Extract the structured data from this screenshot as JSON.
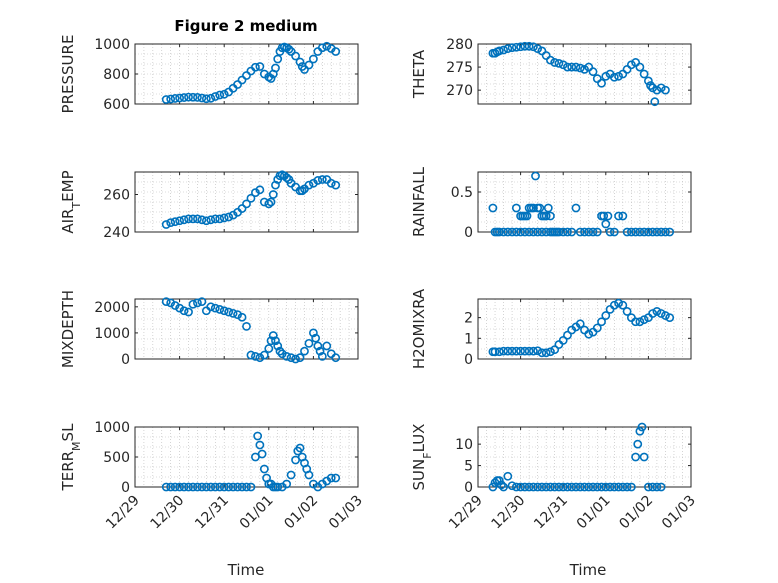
{
  "title": "Figure 2 medium",
  "marker_color": "#0072bd",
  "x_tick_labels": [
    "12/29",
    "12/30",
    "12/31",
    "01/01",
    "01/02",
    "01/03"
  ],
  "chart_data": [
    {
      "type": "scatter",
      "ylabel": "PRESSURE",
      "ylim": [
        600,
        1000
      ],
      "yticks": [
        600,
        800,
        1000
      ],
      "xlim": [
        0,
        5
      ],
      "grid": "on",
      "title": "Figure 2 medium",
      "x": [
        0.7,
        0.8,
        0.9,
        1.0,
        1.1,
        1.2,
        1.3,
        1.4,
        1.5,
        1.6,
        1.7,
        1.8,
        1.9,
        2.0,
        2.1,
        2.2,
        2.3,
        2.4,
        2.5,
        2.6,
        2.7,
        2.8,
        2.9,
        3.0,
        3.05,
        3.1,
        3.15,
        3.2,
        3.25,
        3.3,
        3.35,
        3.4,
        3.45,
        3.5,
        3.6,
        3.7,
        3.75,
        3.8,
        3.9,
        4.0,
        4.1,
        4.2,
        4.3,
        4.4,
        4.5
      ],
      "y": [
        630,
        633,
        637,
        640,
        643,
        646,
        645,
        644,
        640,
        635,
        638,
        650,
        660,
        665,
        680,
        705,
        730,
        760,
        790,
        820,
        845,
        850,
        800,
        780,
        770,
        800,
        840,
        900,
        950,
        975,
        980,
        975,
        965,
        950,
        920,
        880,
        850,
        830,
        860,
        900,
        950,
        975,
        985,
        970,
        950
      ]
    },
    {
      "type": "scatter",
      "ylabel": "THETA",
      "ylim": [
        267,
        280
      ],
      "yticks": [
        270,
        275,
        280
      ],
      "xlim": [
        0,
        5
      ],
      "grid": "on",
      "x": [
        0.35,
        0.4,
        0.45,
        0.5,
        0.6,
        0.7,
        0.8,
        0.9,
        1.0,
        1.1,
        1.2,
        1.3,
        1.4,
        1.5,
        1.6,
        1.7,
        1.8,
        1.9,
        2.0,
        2.1,
        2.2,
        2.3,
        2.4,
        2.5,
        2.6,
        2.7,
        2.8,
        2.9,
        3.0,
        3.1,
        3.2,
        3.3,
        3.4,
        3.5,
        3.6,
        3.7,
        3.8,
        3.9,
        4.0,
        4.05,
        4.1,
        4.15,
        4.2,
        4.3,
        4.4
      ],
      "y": [
        278,
        278,
        278.3,
        278.5,
        278.7,
        279,
        279.2,
        279.3,
        279.4,
        279.5,
        279.5,
        279.4,
        279,
        278.5,
        277.5,
        276.5,
        276,
        275.8,
        275.5,
        275,
        275,
        275,
        274.8,
        274.5,
        275,
        274,
        272.5,
        271.5,
        273,
        273.5,
        272.8,
        273,
        273.5,
        274.5,
        275.5,
        276,
        275,
        273.5,
        272,
        271,
        270.5,
        267.5,
        270,
        270.5,
        270
      ]
    },
    {
      "type": "scatter",
      "ylabel": "AIR_TEMP",
      "ylim": [
        240,
        272
      ],
      "yticks": [
        240,
        260
      ],
      "xlim": [
        0,
        5
      ],
      "grid": "on",
      "x": [
        0.7,
        0.8,
        0.9,
        1.0,
        1.1,
        1.2,
        1.3,
        1.4,
        1.5,
        1.6,
        1.7,
        1.8,
        1.9,
        2.0,
        2.1,
        2.2,
        2.3,
        2.4,
        2.5,
        2.6,
        2.7,
        2.8,
        2.9,
        3.0,
        3.05,
        3.1,
        3.15,
        3.2,
        3.25,
        3.3,
        3.35,
        3.4,
        3.45,
        3.5,
        3.6,
        3.7,
        3.75,
        3.8,
        3.9,
        4.0,
        4.1,
        4.2,
        4.3,
        4.4,
        4.5
      ],
      "y": [
        244,
        245,
        245.5,
        246,
        246.5,
        247,
        247,
        247,
        246.5,
        246,
        246.5,
        247,
        247,
        247.5,
        248,
        249,
        250.5,
        252.5,
        255,
        258,
        261,
        262.5,
        256,
        255,
        256,
        260,
        265,
        268,
        270,
        270.5,
        270,
        269,
        268,
        266,
        264,
        262,
        262,
        263,
        265,
        266,
        267.5,
        268,
        268,
        266,
        265
      ]
    },
    {
      "type": "scatter",
      "ylabel": "RAINFALL",
      "ylim": [
        0,
        0.75
      ],
      "yticks": [
        0,
        0.5
      ],
      "xlim": [
        0,
        5
      ],
      "grid": "on",
      "x": [
        0.35,
        0.4,
        0.45,
        0.5,
        0.6,
        0.7,
        0.8,
        0.9,
        1.0,
        1.05,
        1.1,
        1.15,
        1.2,
        1.25,
        1.3,
        1.35,
        1.4,
        1.45,
        1.5,
        1.55,
        1.6,
        1.65,
        1.7,
        1.75,
        1.8,
        1.85,
        1.9,
        2.0,
        2.1,
        2.2,
        2.3,
        2.4,
        2.5,
        2.6,
        2.7,
        2.8,
        2.9,
        2.95,
        3.0,
        3.05,
        3.1,
        3.2,
        3.3,
        3.4,
        3.5,
        3.6,
        3.7,
        3.8,
        3.9,
        4.0,
        4.1,
        4.2,
        4.3,
        4.4,
        4.5,
        0.9,
        1.0,
        1.1,
        1.2,
        1.3,
        1.4,
        1.5,
        1.6,
        1.7
      ],
      "y": [
        0.3,
        0,
        0,
        0,
        0,
        0,
        0,
        0.3,
        0.2,
        0.2,
        0.2,
        0.2,
        0.3,
        0.3,
        0.3,
        0.7,
        0.3,
        0.3,
        0.2,
        0.2,
        0.2,
        0.3,
        0.2,
        0,
        0,
        0,
        0,
        0,
        0,
        0,
        0.3,
        0,
        0,
        0,
        0,
        0,
        0.2,
        0.2,
        0.1,
        0.2,
        0,
        0,
        0.2,
        0.2,
        0,
        0,
        0,
        0,
        0,
        0,
        0,
        0,
        0,
        0,
        0,
        0,
        0,
        0,
        0,
        0,
        0,
        0,
        0,
        0
      ]
    },
    {
      "type": "scatter",
      "ylabel": "MIXDEPTH",
      "ylim": [
        0,
        2300
      ],
      "yticks": [
        0,
        1000,
        2000
      ],
      "xlim": [
        0,
        5
      ],
      "grid": "on",
      "x": [
        0.7,
        0.8,
        0.9,
        1.0,
        1.1,
        1.2,
        1.3,
        1.4,
        1.5,
        1.6,
        1.7,
        1.8,
        1.9,
        2.0,
        2.1,
        2.2,
        2.3,
        2.4,
        2.5,
        2.6,
        2.7,
        2.8,
        2.9,
        3.0,
        3.05,
        3.1,
        3.15,
        3.2,
        3.25,
        3.3,
        3.4,
        3.5,
        3.6,
        3.7,
        3.8,
        3.9,
        4.0,
        4.05,
        4.1,
        4.15,
        4.2,
        4.3,
        4.4,
        4.5
      ],
      "y": [
        2200,
        2150,
        2050,
        1950,
        1850,
        1800,
        2100,
        2150,
        2200,
        1850,
        2000,
        1950,
        1900,
        1850,
        1800,
        1750,
        1700,
        1600,
        1250,
        150,
        100,
        50,
        150,
        400,
        700,
        900,
        700,
        500,
        300,
        200,
        100,
        50,
        0,
        50,
        300,
        600,
        1000,
        800,
        500,
        300,
        100,
        500,
        200,
        50
      ]
    },
    {
      "type": "scatter",
      "ylabel": "H2OMIXRA",
      "ylim": [
        0,
        2.9
      ],
      "yticks": [
        0,
        1,
        2
      ],
      "xlim": [
        0,
        5
      ],
      "grid": "on",
      "x": [
        0.35,
        0.4,
        0.5,
        0.6,
        0.7,
        0.8,
        0.9,
        1.0,
        1.1,
        1.2,
        1.3,
        1.4,
        1.5,
        1.6,
        1.7,
        1.8,
        1.9,
        2.0,
        2.1,
        2.2,
        2.3,
        2.4,
        2.5,
        2.6,
        2.7,
        2.8,
        2.9,
        3.0,
        3.1,
        3.2,
        3.3,
        3.4,
        3.5,
        3.6,
        3.7,
        3.8,
        3.9,
        4.0,
        4.1,
        4.2,
        4.3,
        4.4,
        4.5
      ],
      "y": [
        0.35,
        0.35,
        0.35,
        0.38,
        0.38,
        0.38,
        0.38,
        0.38,
        0.38,
        0.38,
        0.38,
        0.4,
        0.3,
        0.3,
        0.35,
        0.45,
        0.7,
        0.9,
        1.15,
        1.4,
        1.55,
        1.7,
        1.4,
        1.2,
        1.3,
        1.5,
        1.8,
        2.1,
        2.4,
        2.6,
        2.7,
        2.6,
        2.3,
        2.0,
        1.8,
        1.8,
        1.9,
        2.0,
        2.2,
        2.3,
        2.2,
        2.1,
        2.0
      ]
    },
    {
      "type": "scatter",
      "ylabel": "TERR_MSL",
      "ylim": [
        0,
        1000
      ],
      "yticks": [
        0,
        500,
        1000
      ],
      "xlim": [
        0,
        5
      ],
      "grid": "on",
      "x": [
        0.7,
        0.8,
        0.9,
        1.0,
        1.1,
        1.2,
        1.3,
        1.4,
        1.5,
        1.6,
        1.7,
        1.8,
        1.9,
        2.0,
        2.1,
        2.2,
        2.3,
        2.4,
        2.5,
        2.6,
        2.7,
        2.75,
        2.8,
        2.85,
        2.9,
        2.95,
        3.0,
        3.05,
        3.1,
        3.15,
        3.2,
        3.3,
        3.4,
        3.5,
        3.6,
        3.65,
        3.7,
        3.75,
        3.8,
        3.85,
        3.9,
        4.0,
        4.1,
        4.2,
        4.3,
        4.4,
        4.5
      ],
      "y": [
        0,
        0,
        0,
        0,
        0,
        0,
        0,
        0,
        0,
        0,
        0,
        0,
        0,
        0,
        0,
        0,
        0,
        0,
        0,
        0,
        500,
        850,
        700,
        550,
        300,
        150,
        50,
        50,
        0,
        0,
        0,
        0,
        50,
        200,
        450,
        600,
        650,
        500,
        400,
        300,
        200,
        50,
        0,
        50,
        100,
        150,
        150
      ]
    },
    {
      "type": "scatter",
      "ylabel": "SUN_FLUX",
      "ylim": [
        0,
        14
      ],
      "yticks": [
        0,
        5,
        10
      ],
      "xlim": [
        0,
        5
      ],
      "grid": "on",
      "x": [
        0.35,
        0.4,
        0.45,
        0.5,
        0.55,
        0.6,
        0.7,
        0.8,
        0.9,
        1.0,
        1.1,
        1.2,
        1.3,
        1.4,
        1.5,
        1.6,
        1.7,
        1.8,
        1.9,
        2.0,
        2.1,
        2.2,
        2.3,
        2.4,
        2.5,
        2.6,
        2.7,
        2.8,
        2.9,
        3.0,
        3.1,
        3.2,
        3.3,
        3.4,
        3.5,
        3.6,
        3.7,
        3.75,
        3.8,
        3.85,
        3.9,
        4.0,
        4.1,
        4.2,
        4.3
      ],
      "y": [
        0,
        1,
        1.5,
        1.5,
        0.5,
        0,
        2.5,
        0.3,
        0,
        0,
        0,
        0,
        0,
        0,
        0,
        0,
        0,
        0,
        0,
        0,
        0,
        0,
        0,
        0,
        0,
        0,
        0,
        0,
        0,
        0,
        0,
        0,
        0,
        0,
        0,
        0,
        7,
        10,
        13,
        14,
        7,
        0,
        0,
        0,
        0
      ]
    }
  ],
  "xlabels": [
    "Time",
    "Time"
  ]
}
